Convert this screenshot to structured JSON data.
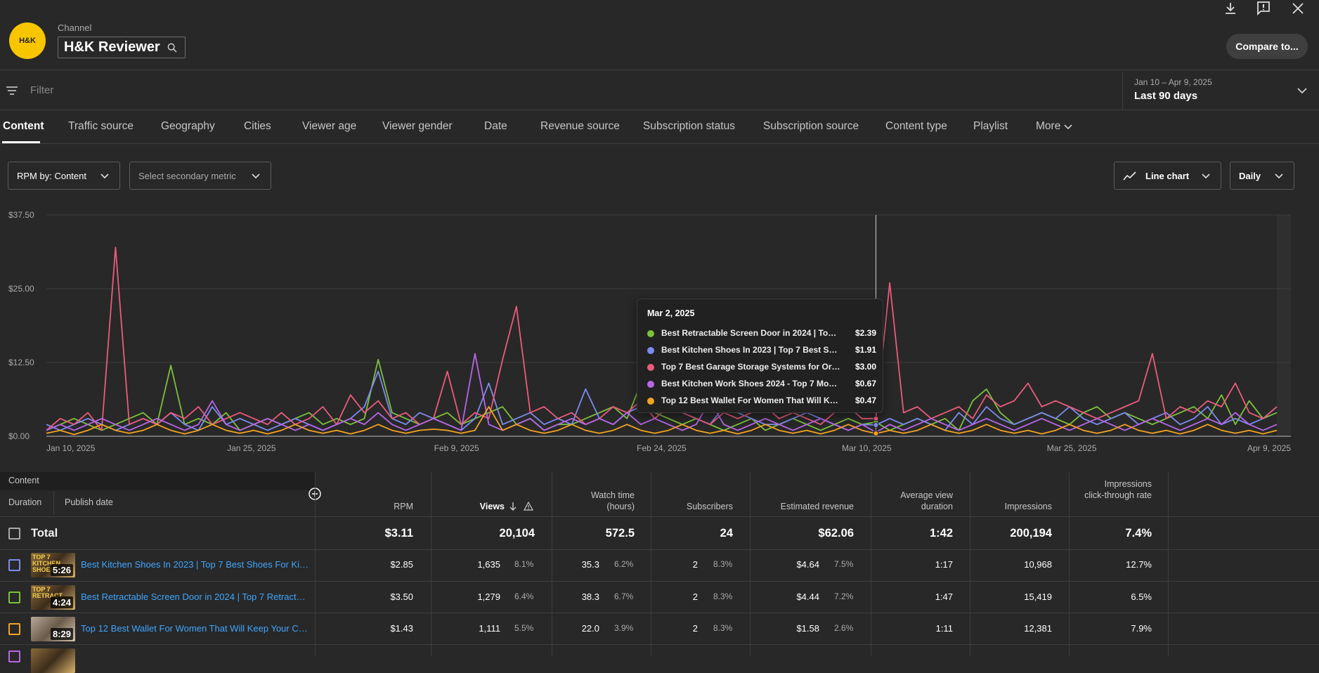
{
  "channel": {
    "label": "Channel",
    "name": "H&K Reviewer",
    "logo_text": "H&K"
  },
  "header": {
    "compare_label": "Compare to..."
  },
  "filter": {
    "placeholder": "Filter"
  },
  "date_range": {
    "range": "Jan 10 – Apr 9, 2025",
    "label": "Last 90 days"
  },
  "tabs": [
    "Content",
    "Traffic source",
    "Geography",
    "Cities",
    "Viewer age",
    "Viewer gender",
    "Date",
    "Revenue source",
    "Subscription status",
    "Subscription source",
    "Content type",
    "Playlist",
    "More"
  ],
  "controls": {
    "metric": "RPM by: Content",
    "secondary": "Select secondary metric",
    "chart_type": "Line chart",
    "granularity": "Daily"
  },
  "colors": {
    "green": "#7cc13a",
    "blue": "#7b8cf0",
    "pink": "#ec5b7d",
    "purple": "#b866e8",
    "orange": "#f2a321"
  },
  "chart_data": {
    "type": "line",
    "y_ticks": [
      "$37.50",
      "$25.00",
      "$12.50",
      "$0.00"
    ],
    "ylim": [
      0,
      37.5
    ],
    "x_ticks": [
      "Jan 10, 2025",
      "Jan 25, 2025",
      "Feb 9, 2025",
      "Feb 24, 2025",
      "Mar 10, 2025",
      "Mar 25, 2025",
      "Apr 9, 2025"
    ],
    "x_days": 90,
    "series": [
      {
        "name": "Best Retractable Screen Door in 2024 | Top 7 ...",
        "color": "#7cc13a",
        "values": [
          1,
          2,
          3,
          2,
          1,
          2,
          3,
          4,
          2,
          12,
          2,
          3,
          2,
          4,
          1,
          2,
          3,
          2,
          3,
          4,
          2,
          3,
          2,
          3,
          13,
          4,
          3,
          2,
          3,
          4,
          2,
          3,
          4,
          5,
          2,
          3,
          1,
          2,
          2,
          3,
          4,
          5,
          3,
          9,
          4,
          3,
          2,
          3,
          2,
          1,
          2,
          3,
          1,
          2,
          3,
          2,
          1,
          2,
          3,
          2,
          2.4,
          1,
          2,
          3,
          2,
          3,
          1,
          6,
          8,
          4,
          2,
          3,
          4,
          3,
          2,
          4,
          5,
          3,
          4,
          3,
          2,
          3,
          4,
          5,
          3,
          7,
          2,
          6,
          3,
          4
        ]
      },
      {
        "name": "Best Kitchen Shoes In 2023 | Top 7 Best Shoe...",
        "color": "#7b8cf0",
        "values": [
          2,
          1,
          2,
          3,
          2,
          1,
          2,
          3,
          2,
          4,
          2,
          1,
          5,
          2,
          3,
          2,
          1,
          2,
          3,
          2,
          1,
          2,
          3,
          5,
          11,
          3,
          2,
          4,
          3,
          2,
          1,
          3,
          9,
          2,
          3,
          4,
          2,
          3,
          2,
          8,
          3,
          2,
          4,
          5,
          6,
          5,
          4,
          3,
          2,
          5,
          4,
          3,
          2,
          2,
          3,
          4,
          3,
          2,
          1,
          2,
          1.9,
          3,
          2,
          3,
          2,
          1,
          4,
          2,
          5,
          3,
          2,
          3,
          4,
          3,
          5,
          3,
          2,
          3,
          4,
          2,
          3,
          4,
          2,
          3,
          5,
          2,
          3,
          2,
          3,
          5
        ]
      },
      {
        "name": "Top 7 Best Garage Storage Systems for Organ...",
        "color": "#ec5b7d",
        "values": [
          1,
          3,
          2,
          4,
          1,
          32,
          2,
          3,
          2,
          4,
          3,
          5,
          2,
          3,
          4,
          3,
          2,
          4,
          2,
          3,
          5,
          2,
          7,
          4,
          6,
          3,
          4,
          2,
          3,
          11,
          2,
          4,
          3,
          13,
          22,
          4,
          5,
          3,
          4,
          2,
          3,
          5,
          4,
          6,
          3,
          5,
          4,
          3,
          2,
          4,
          3,
          4,
          5,
          3,
          4,
          3,
          2,
          4,
          5,
          3,
          3.0,
          26,
          4,
          5,
          3,
          4,
          5,
          3,
          7,
          5,
          6,
          9,
          5,
          6,
          5,
          4,
          3,
          4,
          5,
          6,
          14,
          3,
          5,
          4,
          6,
          5,
          9,
          4,
          3,
          5
        ]
      },
      {
        "name": "Best Kitchen Work Shoes 2024 - Top 7 Most C...",
        "color": "#b866e8",
        "values": [
          1,
          2,
          1,
          2,
          3,
          2,
          1,
          2,
          3,
          2,
          1,
          2,
          6,
          2,
          1,
          2,
          3,
          2,
          1,
          2,
          1,
          2,
          3,
          2,
          4,
          2,
          1,
          2,
          3,
          2,
          1,
          14,
          2,
          1,
          2,
          3,
          1,
          2,
          3,
          2,
          3,
          2,
          4,
          2,
          3,
          2,
          1,
          2,
          6,
          2,
          1,
          2,
          3,
          2,
          1,
          2,
          3,
          2,
          1,
          2,
          0.67,
          2,
          1,
          2,
          3,
          2,
          1,
          2,
          3,
          2,
          1,
          2,
          3,
          2,
          1,
          2,
          3,
          2,
          1,
          2,
          3,
          2,
          1,
          2,
          3,
          2,
          4,
          2,
          1,
          2
        ]
      },
      {
        "name": "Top 12 Best Wallet For Women That Will Keep...",
        "color": "#f2a321",
        "values": [
          0.5,
          1,
          0.3,
          1,
          2,
          1,
          0.5,
          1,
          2,
          1,
          0.4,
          1,
          2,
          1,
          0.5,
          1,
          0.4,
          1,
          2,
          1,
          0.5,
          1,
          0.4,
          1,
          2,
          1,
          0.5,
          1,
          1.2,
          1,
          0.5,
          1,
          5,
          1,
          2,
          1,
          0.5,
          1,
          2,
          1,
          0.5,
          1,
          2,
          1,
          0.5,
          1,
          2,
          1,
          0.5,
          1,
          0.4,
          1,
          2,
          1,
          0.5,
          1,
          0.4,
          1,
          2,
          1,
          0.47,
          1,
          0.5,
          1,
          2,
          1,
          0.5,
          1,
          2,
          1,
          0.5,
          1,
          0.4,
          1,
          2,
          1,
          0.5,
          1,
          2,
          1,
          0.5,
          1,
          0.4,
          1,
          2,
          1,
          0.5,
          1,
          0.4,
          1
        ]
      }
    ]
  },
  "tooltip": {
    "date": "Mar 2, 2025",
    "rows": [
      {
        "name": "Best Retractable Screen Door in 2024 | Top 7 ...",
        "value": "$2.39",
        "color": "#7cc13a"
      },
      {
        "name": "Best Kitchen Shoes In 2023 | Top 7 Best Shoe...",
        "value": "$1.91",
        "color": "#7b8cf0"
      },
      {
        "name": "Top 7 Best Garage Storage Systems for Organ...",
        "value": "$3.00",
        "color": "#ec5b7d"
      },
      {
        "name": "Best Kitchen Work Shoes 2024 - Top 7 Most C...",
        "value": "$0.67",
        "color": "#b866e8"
      },
      {
        "name": "Top 12 Best Wallet For Women That Will Keep...",
        "value": "$0.47",
        "color": "#f2a321"
      }
    ]
  },
  "table": {
    "content_header": "Content",
    "duration_header": "Duration",
    "publish_header": "Publish date",
    "columns": [
      "RPM",
      "Views",
      "Watch time (hours)",
      "Subscribers",
      "Estimated revenue",
      "Average view duration",
      "Impressions",
      "Impressions click-through rate"
    ],
    "total": {
      "label": "Total",
      "rpm": "$3.11",
      "views": "20,104",
      "watch": "572.5",
      "subs": "24",
      "revenue": "$62.06",
      "avd": "1:42",
      "impressions": "200,194",
      "ctr": "7.4%"
    },
    "rows": [
      {
        "title": "Best Kitchen Shoes In 2023 | Top 7 Best Shoes For Kitchen...",
        "duration": "5:26",
        "thumb_text": "TOP 7 KITCHEN SHOES",
        "color": "#7b8cf0",
        "rpm": "$2.85",
        "views": "1,635",
        "views_pct": "8.1%",
        "watch": "35.3",
        "watch_pct": "6.2%",
        "subs": "2",
        "subs_pct": "8.3%",
        "revenue": "$4.64",
        "revenue_pct": "7.5%",
        "avd": "1:17",
        "impressions": "10,968",
        "ctr": "12.7%"
      },
      {
        "title": "Best Retractable Screen Door in 2024 | Top 7 Retractable...",
        "duration": "4:24",
        "thumb_text": "TOP 7 RETRACT",
        "color": "#7cc13a",
        "rpm": "$3.50",
        "views": "1,279",
        "views_pct": "6.4%",
        "watch": "38.3",
        "watch_pct": "6.7%",
        "subs": "2",
        "subs_pct": "8.3%",
        "revenue": "$4.44",
        "revenue_pct": "7.2%",
        "avd": "1:47",
        "impressions": "15,419",
        "ctr": "6.5%"
      },
      {
        "title": "Top 12 Best Wallet For Women That Will Keep Your Cards...",
        "duration": "8:29",
        "thumb_text": "",
        "color": "#f2a321",
        "rpm": "$1.43",
        "views": "1,111",
        "views_pct": "5.5%",
        "watch": "22.0",
        "watch_pct": "3.9%",
        "subs": "2",
        "subs_pct": "8.3%",
        "revenue": "$1.58",
        "revenue_pct": "2.6%",
        "avd": "1:11",
        "impressions": "12,381",
        "ctr": "7.9%"
      }
    ]
  }
}
